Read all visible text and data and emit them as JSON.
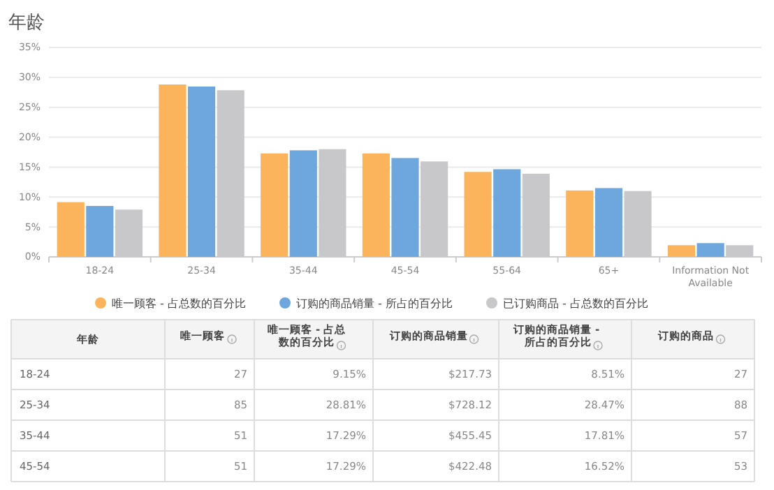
{
  "chart_data": [
    {
      "type": "bar",
      "title": "年龄",
      "categories": [
        "18-24",
        "25-34",
        "35-44",
        "45-54",
        "55-64",
        "65+",
        "Information Not Available"
      ],
      "series": [
        {
          "name": "唯一顾客 - 占总数的百分比",
          "color": "#fbb45c",
          "values": [
            9.15,
            28.81,
            17.29,
            17.29,
            14.2,
            11.1,
            1.95
          ]
        },
        {
          "name": "订购的商品销量 - 所占的百分比",
          "color": "#6ea7dd",
          "values": [
            8.51,
            28.47,
            17.81,
            16.52,
            14.65,
            11.5,
            2.3
          ]
        },
        {
          "name": "已订购商品 - 占总数的百分比",
          "color": "#c8c8ca",
          "values": [
            7.9,
            27.85,
            18.0,
            15.95,
            13.9,
            11.0,
            1.95
          ]
        }
      ],
      "ylim": [
        0,
        35
      ],
      "yticks": [
        {
          "value": 0,
          "label": "0%"
        },
        {
          "value": 5,
          "label": "5%"
        },
        {
          "value": 10,
          "label": "10%"
        },
        {
          "value": 15,
          "label": "15%"
        },
        {
          "value": 20,
          "label": "20%"
        },
        {
          "value": 25,
          "label": "25%"
        },
        {
          "value": 30,
          "label": "30%"
        },
        {
          "value": 35,
          "label": "35%"
        }
      ],
      "grid": "y",
      "legend": "bottom"
    },
    {
      "type": "other",
      "ylabel": "年龄",
      "categories": [
        "唯一顾客",
        "唯一顾客 - 占总数的百分比",
        "订购的商品销量",
        "订购的商品销量 - 所占的百分比",
        "订购的商品"
      ],
      "y_categories": [
        "18-24",
        "25-34",
        "35-44",
        "45-54"
      ],
      "cell_labels": [
        [
          "27",
          "9.15%",
          "$217.73",
          "8.51%",
          "27"
        ],
        [
          "85",
          "28.81%",
          "$728.12",
          "28.47%",
          "88"
        ],
        [
          "51",
          "17.29%",
          "$455.45",
          "17.81%",
          "57"
        ],
        [
          "51",
          "17.29%",
          "$422.48",
          "16.52%",
          "53"
        ]
      ]
    }
  ]
}
